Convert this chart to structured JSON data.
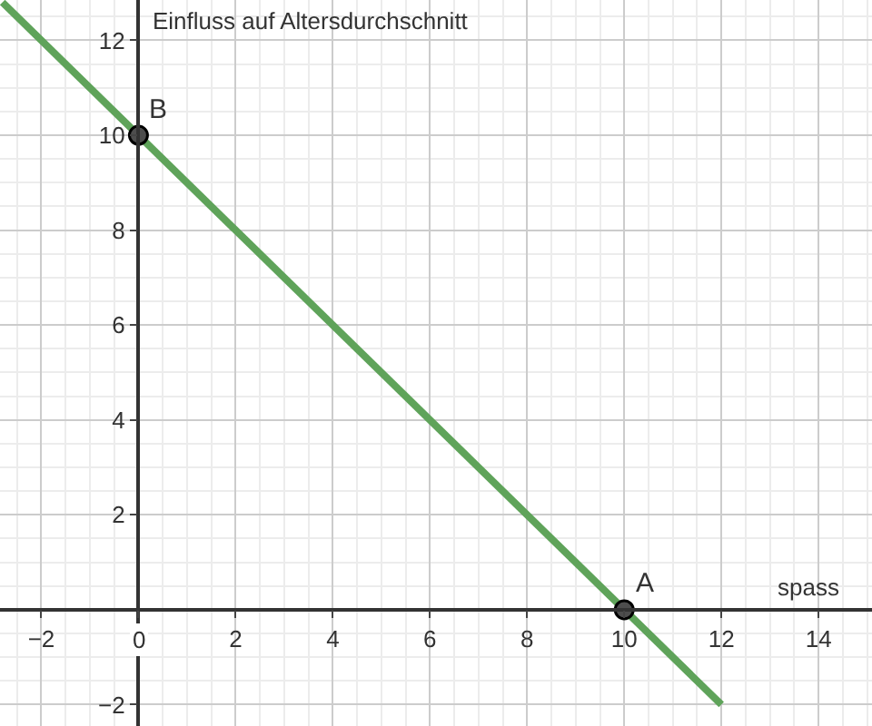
{
  "chart_data": {
    "type": "line",
    "xlabel": "spass",
    "ylabel": "Einfluss auf Altersdurchschnitt",
    "xlim": [
      -2.85,
      15.1
    ],
    "ylim": [
      -2.45,
      12.85
    ],
    "xticks": [
      -2,
      0,
      2,
      4,
      6,
      8,
      10,
      12,
      14
    ],
    "yticks": [
      -2,
      2,
      4,
      6,
      8,
      10,
      12
    ],
    "grid": true,
    "marker": "none",
    "line_style": "solid",
    "series": [
      {
        "color": "#5fa35a",
        "x": [
          -2.8,
          12
        ],
        "values": [
          12.8,
          -2
        ]
      },
      {
        "type": "scatter",
        "color": "#4d4d4d",
        "x": [
          10,
          0
        ],
        "values": [
          0,
          10
        ],
        "marker": "circle"
      }
    ],
    "annotations": [
      {
        "text": "A",
        "x": 10,
        "y": 0
      },
      {
        "text": "B",
        "x": 0,
        "y": 10
      }
    ]
  }
}
